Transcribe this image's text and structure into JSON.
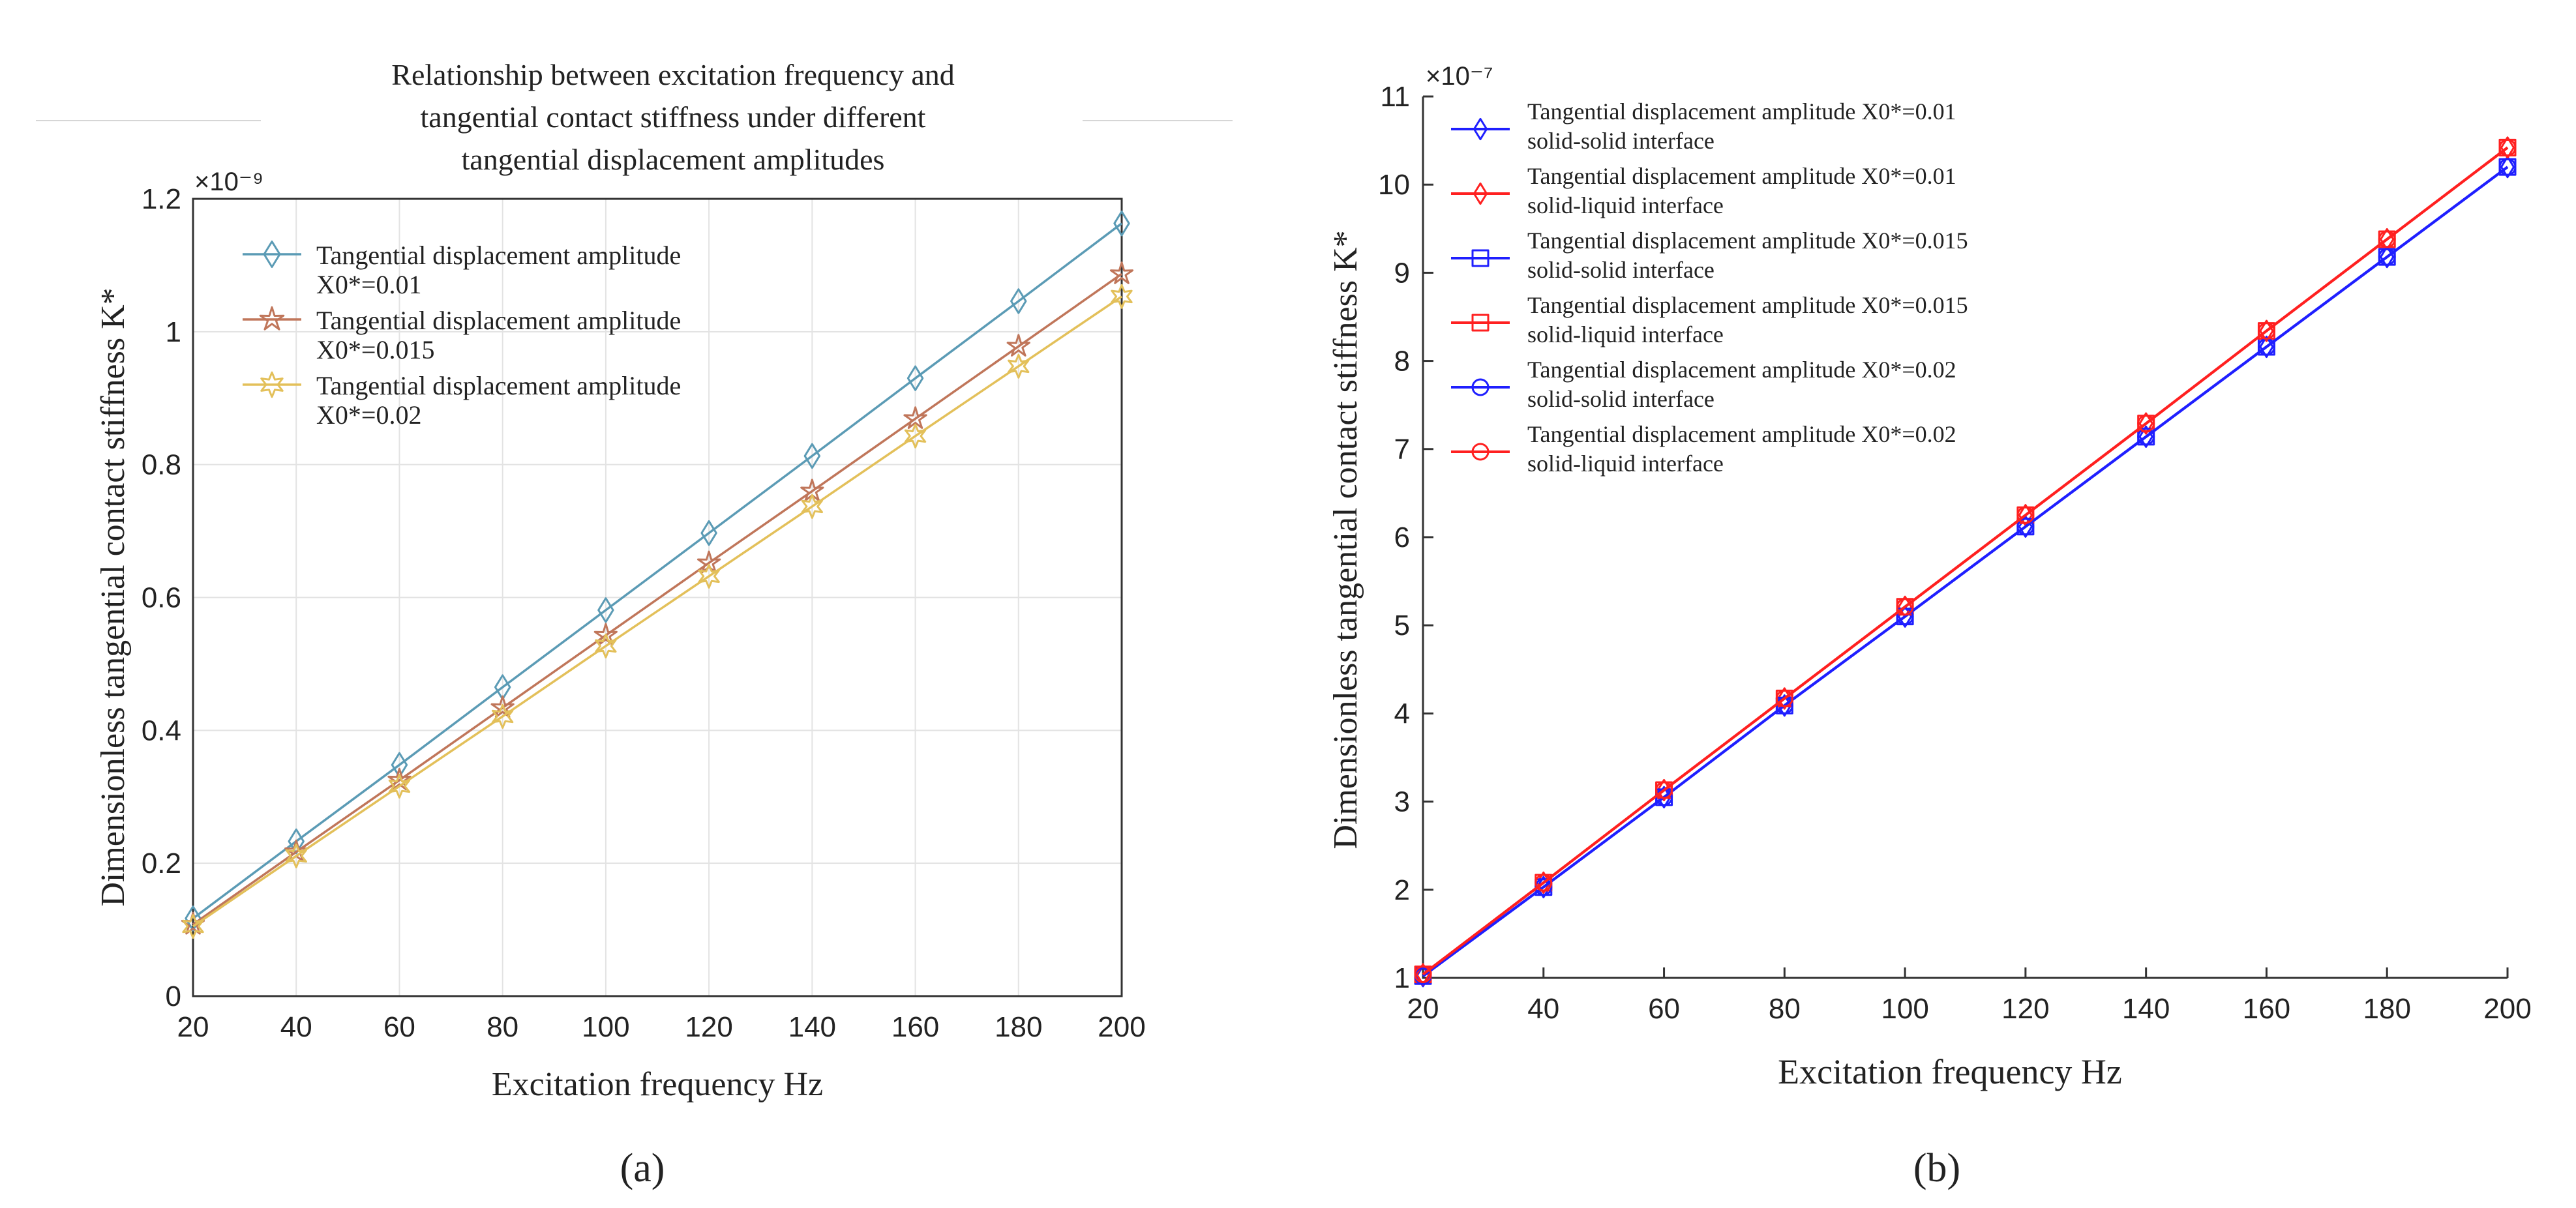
{
  "chart_data": [
    {
      "type": "line",
      "panel_label": "(a)",
      "title": "Relationship between excitation frequency and tangential contact stiffness under different tangential displacement amplitudes",
      "title_lines": [
        "Relationship between excitation frequency and",
        "tangential contact stiffness under different",
        "tangential displacement amplitudes"
      ],
      "xlabel": "Excitation frequency Hz",
      "ylabel": "Dimensionless tangential contact stiffness K*",
      "exponent_label": "×10⁻⁹",
      "x": [
        20,
        40,
        60,
        80,
        100,
        120,
        140,
        160,
        180,
        200
      ],
      "xlim": [
        20,
        200
      ],
      "ylim": [
        0,
        1.2
      ],
      "xticks": [
        "20",
        "40",
        "60",
        "80",
        "100",
        "120",
        "140",
        "160",
        "180",
        "200"
      ],
      "yticks": [
        "0",
        "0.2",
        "0.4",
        "0.6",
        "0.8",
        "1",
        "1.2"
      ],
      "grid": true,
      "legend_position": "top-left",
      "series": [
        {
          "name": "Tangential displacement amplitude X0*=0.01",
          "legend_line1": "Tangential displacement amplitude",
          "legend_line2": "X0*=0.01",
          "marker": "diamond",
          "color": "#5b9bb5",
          "values": [
            0.117,
            0.233,
            0.348,
            0.465,
            0.581,
            0.697,
            0.813,
            0.93,
            1.046,
            1.163
          ]
        },
        {
          "name": "Tangential displacement amplitude X0*=0.015",
          "legend_line1": "Tangential displacement amplitude",
          "legend_line2": "X0*=0.015",
          "marker": "star",
          "color": "#c0765a",
          "values": [
            0.108,
            0.217,
            0.325,
            0.434,
            0.543,
            0.652,
            0.76,
            0.869,
            0.978,
            1.087
          ]
        },
        {
          "name": "Tangential displacement amplitude X0*=0.02",
          "legend_line1": "Tangential displacement amplitude",
          "legend_line2": "X0*=0.02",
          "marker": "hexagram",
          "color": "#e3c05a",
          "values": [
            0.105,
            0.211,
            0.316,
            0.421,
            0.527,
            0.632,
            0.737,
            0.843,
            0.948,
            1.053
          ]
        }
      ]
    },
    {
      "type": "line",
      "panel_label": "(b)",
      "title": "",
      "xlabel": "Excitation frequency Hz",
      "ylabel": "Dimensionless tangential contact stiffness K*",
      "exponent_label": "×10⁻⁷",
      "x": [
        20,
        40,
        60,
        80,
        100,
        120,
        140,
        160,
        180,
        200
      ],
      "xlim": [
        20,
        200
      ],
      "ylim": [
        1,
        11
      ],
      "xticks": [
        "20",
        "40",
        "60",
        "80",
        "100",
        "120",
        "140",
        "160",
        "180",
        "200"
      ],
      "yticks": [
        "1",
        "2",
        "3",
        "4",
        "5",
        "6",
        "7",
        "8",
        "9",
        "10",
        "11"
      ],
      "grid": false,
      "legend_position": "top-left",
      "series": [
        {
          "name": "Tangential displacement amplitude X0*=0.01 solid-solid interface",
          "legend_line1": "Tangential displacement amplitude X0*=0.01",
          "legend_line2": "solid-solid interface",
          "marker": "diamond",
          "color": "#1f1fff",
          "values": [
            1.02,
            2.03,
            3.05,
            4.09,
            5.1,
            6.12,
            7.14,
            8.16,
            9.18,
            10.2
          ]
        },
        {
          "name": "Tangential displacement amplitude X0*=0.01 solid-liquid interface",
          "legend_line1": "Tangential displacement amplitude X0*=0.01",
          "legend_line2": "solid-liquid interface",
          "marker": "diamond",
          "color": "#ff2020",
          "values": [
            1.04,
            2.08,
            3.13,
            4.17,
            5.21,
            6.25,
            7.29,
            8.34,
            9.38,
            10.42
          ]
        },
        {
          "name": "Tangential displacement amplitude X0*=0.015 solid-solid interface",
          "legend_line1": "Tangential displacement amplitude X0*=0.015",
          "legend_line2": "solid-solid interface",
          "marker": "square",
          "color": "#1f1fff",
          "values": [
            1.02,
            2.03,
            3.05,
            4.09,
            5.1,
            6.12,
            7.14,
            8.16,
            9.18,
            10.2
          ]
        },
        {
          "name": "Tangential displacement amplitude X0*=0.015 solid-liquid interface",
          "legend_line1": "Tangential displacement amplitude X0*=0.015",
          "legend_line2": "solid-liquid interface",
          "marker": "square",
          "color": "#ff2020",
          "values": [
            1.04,
            2.08,
            3.13,
            4.17,
            5.21,
            6.25,
            7.29,
            8.34,
            9.38,
            10.42
          ]
        },
        {
          "name": "Tangential displacement amplitude X0*=0.02 solid-solid interface",
          "legend_line1": "Tangential displacement amplitude X0*=0.02",
          "legend_line2": "solid-solid interface",
          "marker": "circle",
          "color": "#1f1fff",
          "values": [
            1.02,
            2.03,
            3.05,
            4.09,
            5.1,
            6.12,
            7.14,
            8.16,
            9.18,
            10.2
          ]
        },
        {
          "name": "Tangential displacement amplitude X0*=0.02 solid-liquid interface",
          "legend_line1": "Tangential displacement amplitude X0*=0.02",
          "legend_line2": "solid-liquid interface",
          "marker": "circle",
          "color": "#ff2020",
          "values": [
            1.04,
            2.08,
            3.13,
            4.17,
            5.21,
            6.25,
            7.29,
            8.34,
            9.38,
            10.42
          ]
        }
      ]
    }
  ]
}
